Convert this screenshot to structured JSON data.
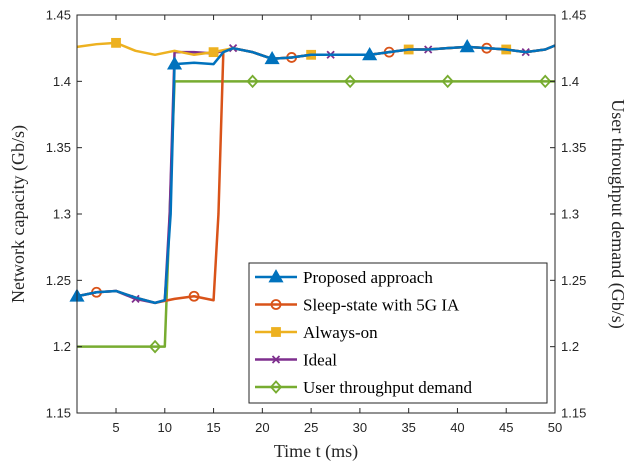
{
  "chart_data": {
    "type": "line",
    "xlabel": "Time t (ms)",
    "ylabel_left": "Network capacity (Gb/s)",
    "ylabel_right": "User throughput demand (Gb/s)",
    "xlim": [
      1,
      50
    ],
    "ylim": [
      1.15,
      1.45
    ],
    "x_ticks": [
      "5",
      "10",
      "15",
      "20",
      "25",
      "30",
      "35",
      "40",
      "45",
      "50"
    ],
    "y_ticks": [
      "1.15",
      "1.2",
      "1.25",
      "1.3",
      "1.35",
      "1.4",
      "1.45"
    ],
    "y_ticks_right": [
      "1.15",
      "1.2",
      "1.25",
      "1.3",
      "1.35",
      "1.4",
      "1.45"
    ],
    "legend_position": "bottom-right",
    "grid": false,
    "series": [
      {
        "name": "Proposed approach",
        "color": "#0072bd",
        "marker": "triangle",
        "x": [
          1,
          3,
          5,
          7,
          9,
          10,
          10.6,
          11,
          13,
          15,
          16,
          17,
          19,
          21,
          23,
          25,
          27,
          29,
          31,
          33,
          35,
          37,
          39,
          41,
          43,
          45,
          47,
          49,
          50
        ],
        "y": [
          1.238,
          1.241,
          1.242,
          1.237,
          1.233,
          1.235,
          1.3,
          1.413,
          1.414,
          1.413,
          1.422,
          1.425,
          1.422,
          1.417,
          1.418,
          1.42,
          1.42,
          1.42,
          1.42,
          1.422,
          1.424,
          1.424,
          1.425,
          1.426,
          1.425,
          1.424,
          1.422,
          1.424,
          1.427
        ],
        "marker_x": [
          1,
          11,
          21,
          31,
          41
        ]
      },
      {
        "name": "Sleep-state with 5G IA",
        "color": "#d95319",
        "marker": "circle",
        "x": [
          1,
          3,
          5,
          7,
          9,
          11,
          13,
          15,
          15.5,
          16,
          17,
          19,
          21,
          23,
          25,
          27,
          29,
          31,
          33,
          35,
          37,
          39,
          41,
          43,
          45,
          47,
          49,
          50
        ],
        "y": [
          1.238,
          1.241,
          1.242,
          1.237,
          1.233,
          1.236,
          1.238,
          1.235,
          1.3,
          1.422,
          1.425,
          1.422,
          1.417,
          1.418,
          1.42,
          1.42,
          1.42,
          1.42,
          1.422,
          1.424,
          1.424,
          1.425,
          1.426,
          1.425,
          1.424,
          1.422,
          1.424,
          1.427
        ],
        "marker_x": [
          3,
          13,
          23,
          33,
          43
        ]
      },
      {
        "name": "Always-on",
        "color": "#edb120",
        "marker": "square",
        "x": [
          1,
          3,
          5,
          7,
          9,
          11,
          13,
          15,
          17,
          19,
          21,
          23,
          25,
          27,
          29,
          31,
          33,
          35,
          37,
          39,
          41,
          43,
          45,
          47,
          49,
          50
        ],
        "y": [
          1.426,
          1.428,
          1.429,
          1.423,
          1.42,
          1.423,
          1.42,
          1.422,
          1.425,
          1.422,
          1.417,
          1.418,
          1.42,
          1.42,
          1.42,
          1.42,
          1.422,
          1.424,
          1.424,
          1.425,
          1.426,
          1.425,
          1.424,
          1.422,
          1.424,
          1.427
        ],
        "marker_x": [
          5,
          15,
          25,
          35,
          45
        ]
      },
      {
        "name": "Ideal",
        "color": "#7e2f8e",
        "marker": "x",
        "x": [
          1,
          3,
          5,
          7,
          9,
          10,
          10.5,
          11,
          13,
          15,
          17,
          19,
          21,
          23,
          25,
          27,
          29,
          31,
          33,
          35,
          37,
          39,
          41,
          43,
          45,
          47,
          49,
          50
        ],
        "y": [
          1.238,
          1.241,
          1.242,
          1.236,
          1.233,
          1.235,
          1.3,
          1.422,
          1.422,
          1.421,
          1.425,
          1.422,
          1.417,
          1.418,
          1.42,
          1.42,
          1.42,
          1.42,
          1.422,
          1.424,
          1.424,
          1.425,
          1.426,
          1.425,
          1.424,
          1.422,
          1.424,
          1.427
        ],
        "marker_x": [
          7,
          17,
          27,
          37,
          47
        ]
      },
      {
        "name": "User throughput demand",
        "color": "#77ac30",
        "marker": "diamond",
        "x": [
          1,
          9,
          10,
          11,
          19,
          29,
          39,
          50
        ],
        "y": [
          1.2,
          1.2,
          1.2,
          1.4,
          1.4,
          1.4,
          1.4,
          1.4
        ],
        "marker_x": [
          9,
          19,
          29,
          39,
          49
        ]
      }
    ]
  }
}
